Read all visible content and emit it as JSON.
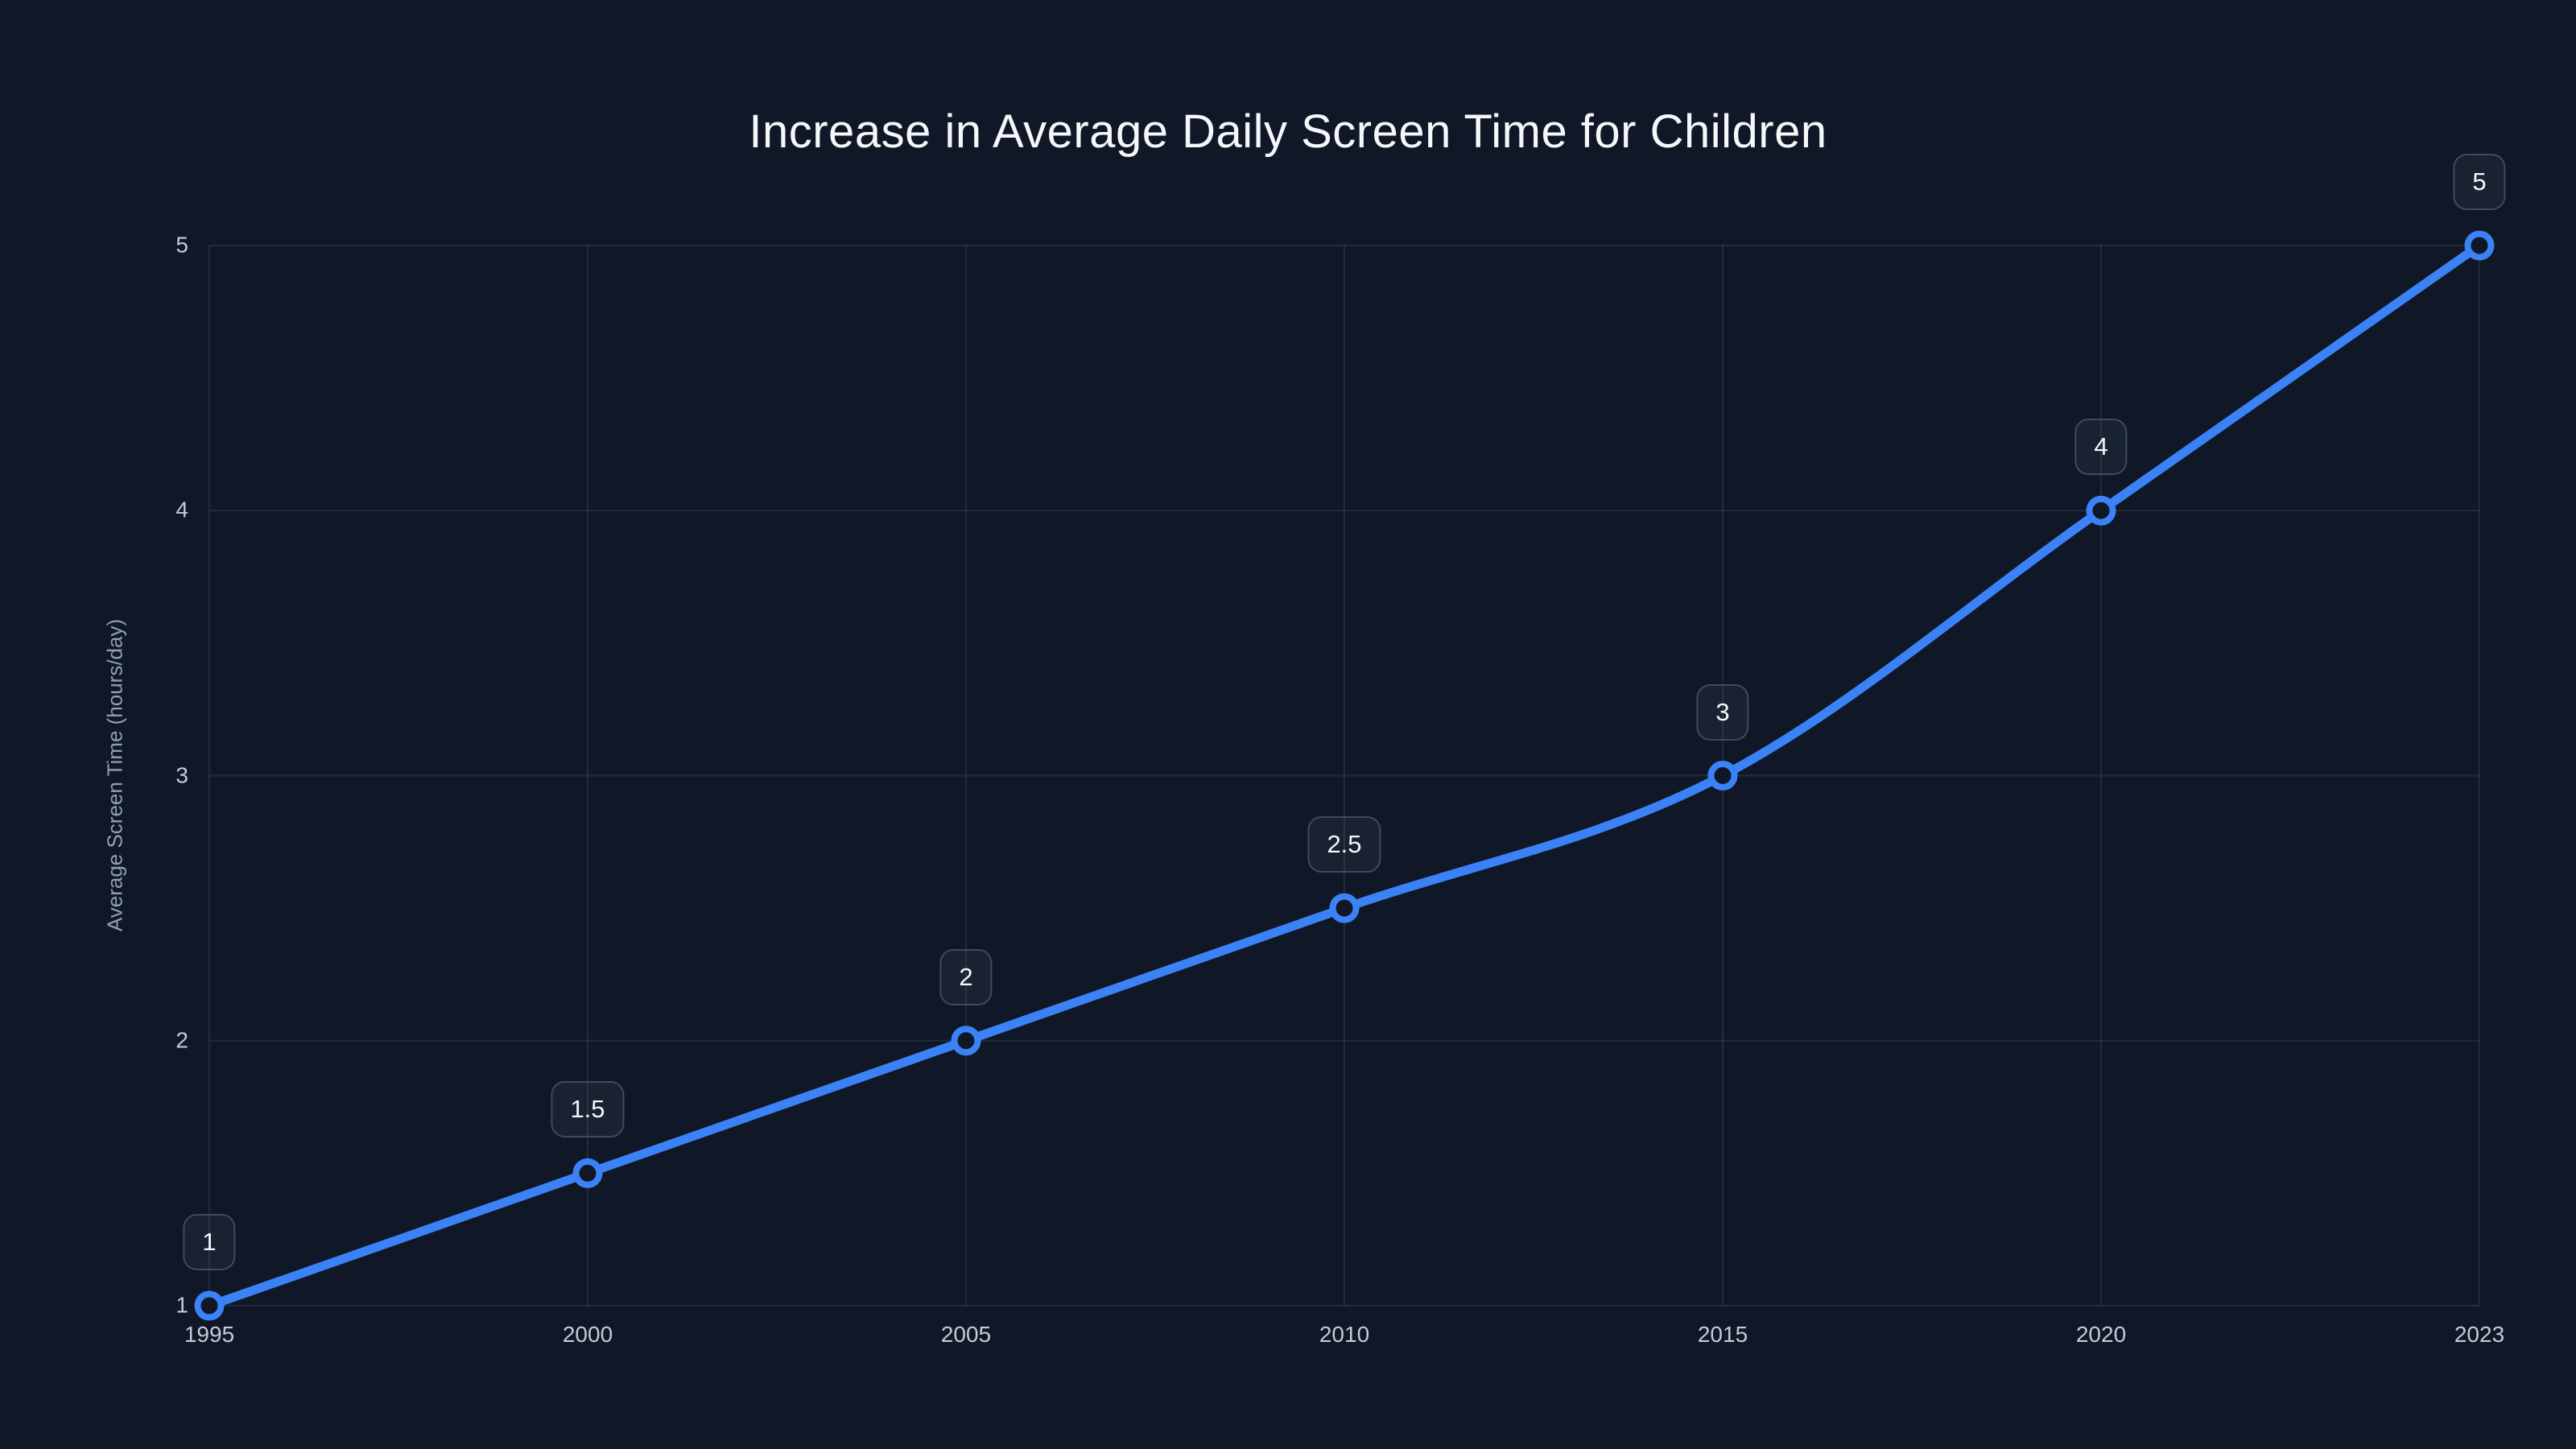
{
  "page": {
    "background": "dark navy dashboard canvas"
  },
  "chart_data": {
    "type": "line",
    "title": "Increase in Average Daily Screen Time for Children",
    "categories": [
      "1995",
      "2000",
      "2005",
      "2010",
      "2015",
      "2020",
      "2023"
    ],
    "series": [
      {
        "name": "Average Screen Time",
        "values": [
          1,
          1.5,
          2,
          2.5,
          3,
          4,
          5
        ]
      }
    ],
    "point_labels": [
      "1",
      "1.5",
      "2",
      "2.5",
      "3",
      "4",
      "5"
    ],
    "xlabel": "",
    "ylabel": "Average Screen Time (hours/day)",
    "ylim": [
      1,
      5
    ],
    "y_ticks": [
      1,
      2,
      3,
      4,
      5
    ],
    "y_tick_labels": [
      "1",
      "2",
      "3",
      "4",
      "5"
    ],
    "grid": "both, faint",
    "legend": "none",
    "line_style": "spline",
    "marker": "open-circle"
  },
  "theme": {
    "background": "#101827",
    "title_color": "#f5f7fa",
    "tick_color": "#c2cbd8",
    "axis_title_color": "#8fa0b5",
    "grid_color": "rgba(148,163,184,0.14)",
    "line_color": "#3b82f6",
    "marker_fill": "#101827",
    "badge_bg": "rgba(148,163,184,0.07)",
    "badge_border": "#3e4a5f",
    "badge_text": "#f5f7fa"
  }
}
